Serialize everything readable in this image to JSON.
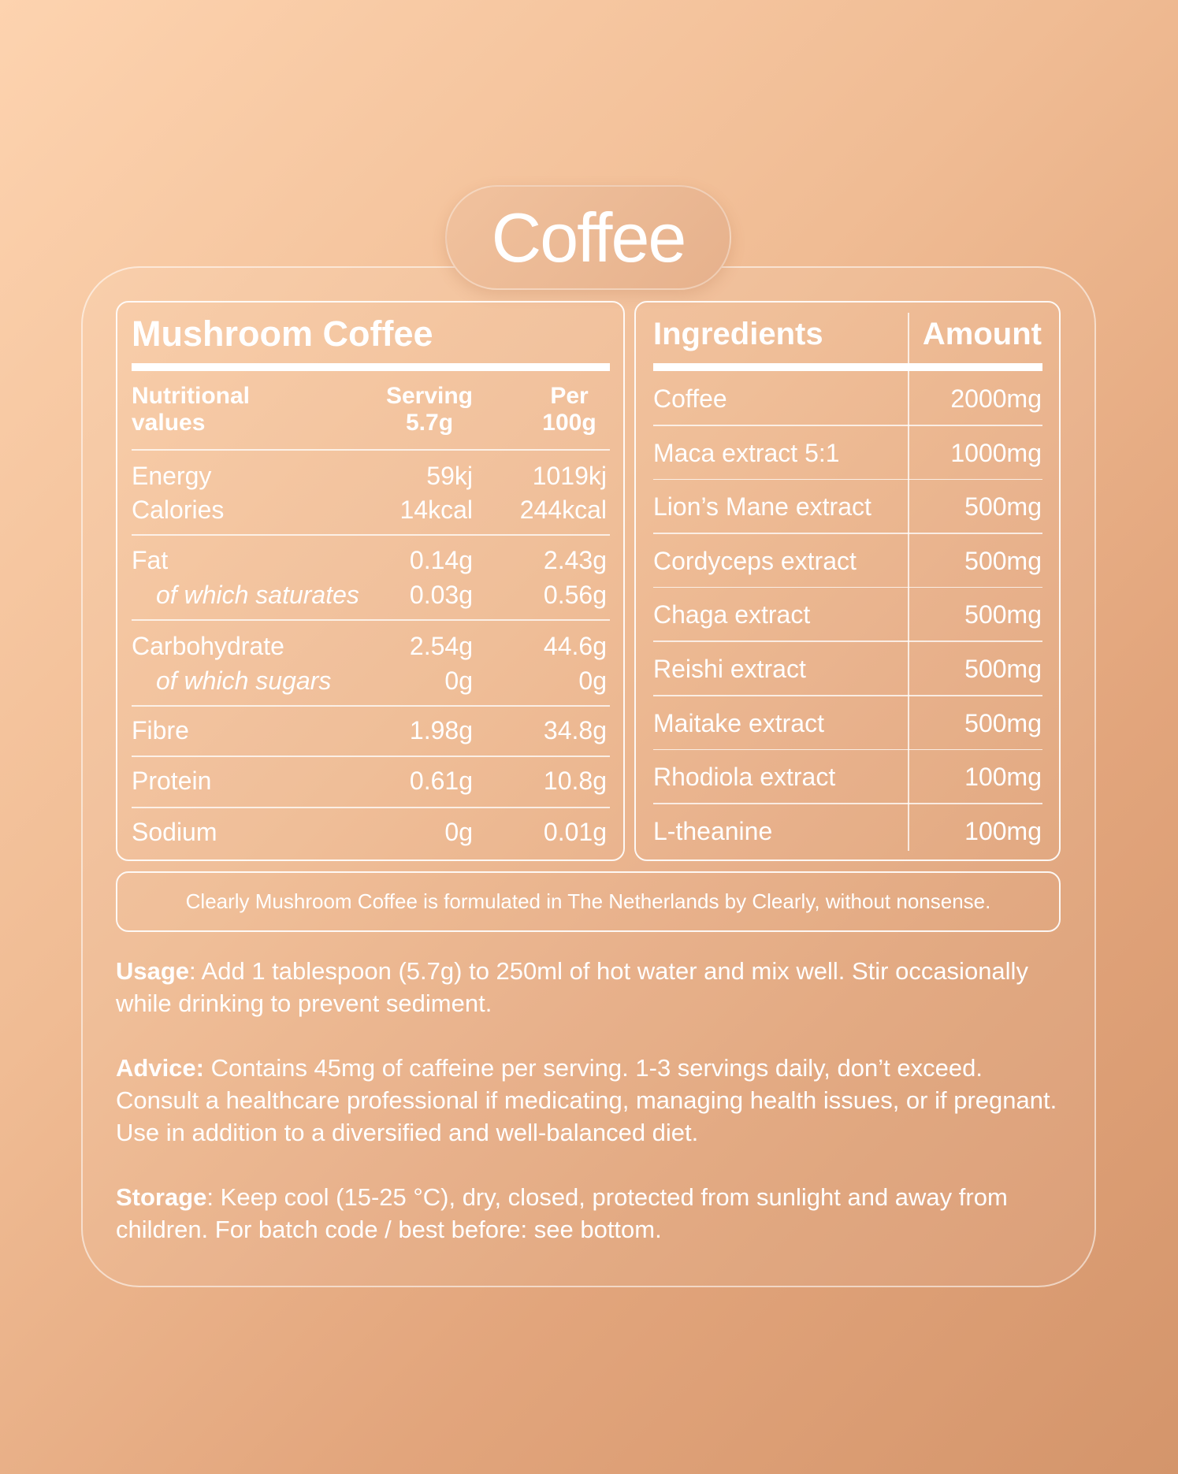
{
  "title": "Coffee",
  "nutrition": {
    "heading": "Mushroom Coffee",
    "col_label": "Nutritional values",
    "col_label_1": "Nutritional",
    "col_label_2": "values",
    "serving_1": "Serving",
    "serving_2": "5.7g",
    "per_1": "Per",
    "per_2": "100g",
    "rows": [
      {
        "label": "Energy",
        "serving": "59kj",
        "per100": "1019kj"
      },
      {
        "label": "Calories",
        "serving": "14kcal",
        "per100": "244kcal"
      },
      {
        "label": "Fat",
        "serving": "0.14g",
        "per100": "2.43g"
      },
      {
        "label": "of which saturates",
        "serving": "0.03g",
        "per100": "0.56g"
      },
      {
        "label": "Carbohydrate",
        "serving": "2.54g",
        "per100": "44.6g"
      },
      {
        "label": "of which sugars",
        "serving": "0g",
        "per100": "0g"
      },
      {
        "label": "Fibre",
        "serving": "1.98g",
        "per100": "34.8g"
      },
      {
        "label": "Protein",
        "serving": "0.61g",
        "per100": "10.8g"
      },
      {
        "label": "Sodium",
        "serving": "0g",
        "per100": "0.01g"
      }
    ]
  },
  "ingredients": {
    "heading": "Ingredients",
    "amount_heading": "Amount",
    "rows": [
      {
        "name": "Coffee",
        "amount": "2000mg"
      },
      {
        "name": "Maca extract 5:1",
        "amount": "1000mg"
      },
      {
        "name": "Lion’s Mane extract",
        "amount": "500mg"
      },
      {
        "name": "Cordyceps extract",
        "amount": "500mg"
      },
      {
        "name": "Chaga extract",
        "amount": "500mg"
      },
      {
        "name": "Reishi extract",
        "amount": "500mg"
      },
      {
        "name": "Maitake extract",
        "amount": "500mg"
      },
      {
        "name": "Rhodiola extract",
        "amount": "100mg"
      },
      {
        "name": "L-theanine",
        "amount": "100mg"
      }
    ]
  },
  "note": "Clearly Mushroom Coffee is formulated in The Netherlands by Clearly, without nonsense.",
  "usage": {
    "label": "Usage",
    "text": ": Add 1 tablespoon (5.7g) to 250ml of hot water and mix well. Stir occasionally while drinking to prevent sediment."
  },
  "advice": {
    "label": "Advice:",
    "text": " Contains 45mg of caffeine per serving. 1-3 servings daily, don’t exceed. Consult a healthcare professional if medicating, managing health issues, or if pregnant. Use in addition to a diversified and well-balanced diet."
  },
  "storage": {
    "label": "Storage",
    "text": ": Keep cool (15-25 °C), dry, closed, protected from sunlight and away from children. For batch code / best before: see bottom."
  }
}
